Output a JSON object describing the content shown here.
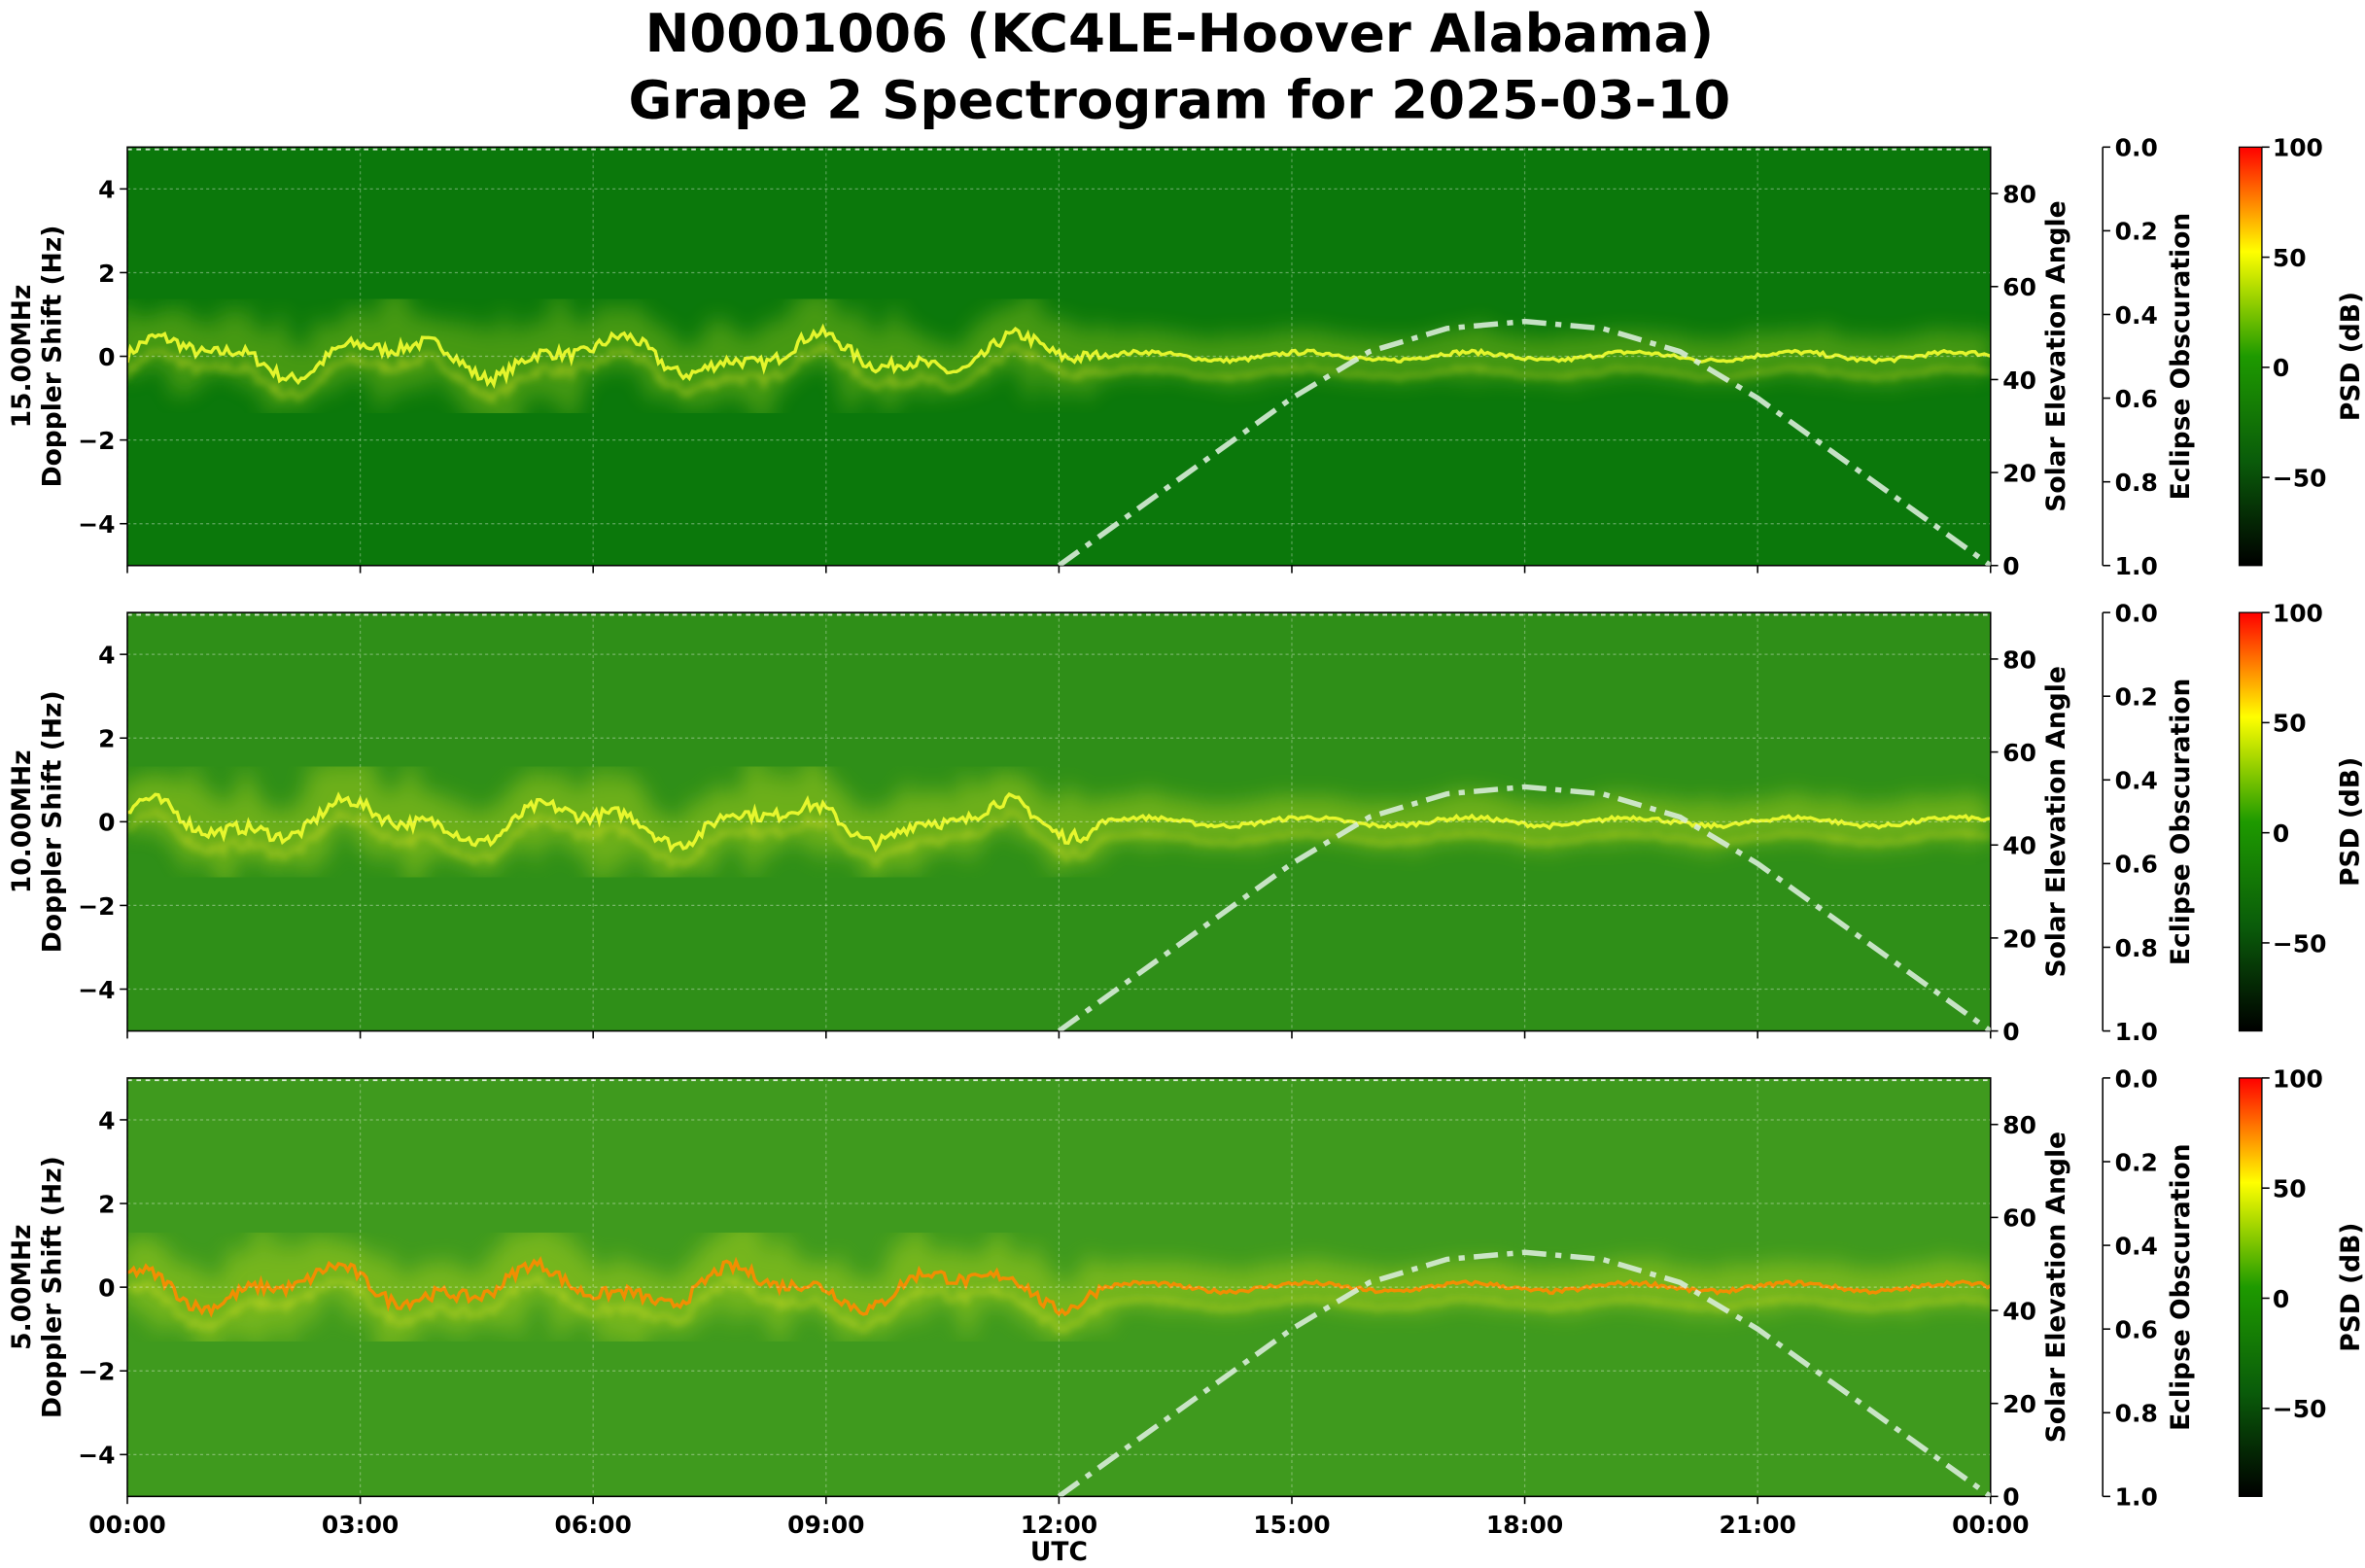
{
  "chart_data": [
    {
      "type": "spectrogram",
      "title": [
        "N0001006 (KC4LE-Hoover Alabama)",
        "Grape 2 Spectrogram for 2025-03-10"
      ],
      "ylabel": [
        "15.00MHz",
        "Doppler Shift (Hz)"
      ],
      "xlim": [
        0,
        24
      ],
      "ylim": [
        -5,
        5
      ],
      "yticks": [
        {
          "value": -4,
          "label": "−4"
        },
        {
          "value": -2,
          "label": "−2"
        },
        0,
        2,
        4
      ],
      "y2label": "Solar Elevation Angle",
      "y2lim": [
        0,
        90
      ],
      "y2ticks": [
        0,
        20,
        40,
        60,
        80
      ],
      "y3label": "Eclipse Obscuration",
      "y3lim": [
        1.0,
        0.0
      ],
      "y3ticks": [
        {
          "value": 0,
          "label": "0.0"
        },
        0.2,
        0.4,
        0.6,
        0.8,
        {
          "value": 1,
          "label": "1.0"
        }
      ],
      "colorbar": {
        "label": "PSD (dB)",
        "lim": [
          -90,
          100
        ],
        "ticks": [
          {
            "value": -50,
            "label": "−50"
          },
          0,
          50,
          100
        ],
        "colormap": [
          "#000000",
          "#0a5c0a",
          "#1e9a00",
          "#ffff00",
          "#ff0000"
        ]
      },
      "series": [
        {
          "color": "#d8ecd8",
          "axis": "y2",
          "x": [
            12,
            13,
            14,
            15,
            16,
            17,
            18,
            19,
            20,
            21,
            22,
            23,
            24
          ],
          "values": [
            0,
            12,
            24,
            36,
            46,
            51,
            52.5,
            51,
            46,
            36,
            24,
            12,
            0
          ]
        }
      ]
    },
    {
      "type": "spectrogram",
      "ylabel": [
        "10.00MHz",
        "Doppler Shift (Hz)"
      ],
      "xlim": [
        0,
        24
      ],
      "ylim": [
        -5,
        5
      ],
      "yticks": [
        {
          "value": -4,
          "label": "−4"
        },
        {
          "value": -2,
          "label": "−2"
        },
        0,
        2,
        4
      ],
      "y2label": "Solar Elevation Angle",
      "y2lim": [
        0,
        90
      ],
      "y2ticks": [
        0,
        20,
        40,
        60,
        80
      ],
      "y3label": "Eclipse Obscuration",
      "y3lim": [
        1.0,
        0.0
      ],
      "y3ticks": [
        {
          "value": 0,
          "label": "0.0"
        },
        0.2,
        0.4,
        0.6,
        0.8,
        {
          "value": 1,
          "label": "1.0"
        }
      ],
      "colorbar": {
        "label": "PSD (dB)",
        "lim": [
          -90,
          100
        ],
        "ticks": [
          {
            "value": -50,
            "label": "−50"
          },
          0,
          50,
          100
        ],
        "colormap": [
          "#000000",
          "#0a5c0a",
          "#1e9a00",
          "#ffff00",
          "#ff0000"
        ]
      },
      "series": [
        {
          "color": "#d8ecd8",
          "axis": "y2",
          "x": [
            12,
            13,
            14,
            15,
            16,
            17,
            18,
            19,
            20,
            21,
            22,
            23,
            24
          ],
          "values": [
            0,
            12,
            24,
            36,
            46,
            51,
            52.5,
            51,
            46,
            36,
            24,
            12,
            0
          ]
        }
      ]
    },
    {
      "type": "spectrogram",
      "ylabel": [
        "5.00MHz",
        "Doppler Shift (Hz)"
      ],
      "xlabel": "UTC",
      "xlim": [
        0,
        24
      ],
      "xticks": [
        {
          "value": 0,
          "label": "00:00"
        },
        {
          "value": 3,
          "label": "03:00"
        },
        {
          "value": 6,
          "label": "06:00"
        },
        {
          "value": 9,
          "label": "09:00"
        },
        {
          "value": 12,
          "label": "12:00"
        },
        {
          "value": 15,
          "label": "15:00"
        },
        {
          "value": 18,
          "label": "18:00"
        },
        {
          "value": 21,
          "label": "21:00"
        },
        {
          "value": 24,
          "label": "00:00"
        }
      ],
      "ylim": [
        -5,
        5
      ],
      "yticks": [
        {
          "value": -4,
          "label": "−4"
        },
        {
          "value": -2,
          "label": "−2"
        },
        0,
        2,
        4
      ],
      "y2label": "Solar Elevation Angle",
      "y2lim": [
        0,
        90
      ],
      "y2ticks": [
        0,
        20,
        40,
        60,
        80
      ],
      "y3label": "Eclipse Obscuration",
      "y3lim": [
        1.0,
        0.0
      ],
      "y3ticks": [
        {
          "value": 0,
          "label": "0.0"
        },
        0.2,
        0.4,
        0.6,
        0.8,
        {
          "value": 1,
          "label": "1.0"
        }
      ],
      "colorbar": {
        "label": "PSD (dB)",
        "lim": [
          -90,
          100
        ],
        "ticks": [
          {
            "value": -50,
            "label": "−50"
          },
          0,
          50,
          100
        ],
        "colormap": [
          "#000000",
          "#0a5c0a",
          "#1e9a00",
          "#ffff00",
          "#ff0000"
        ]
      },
      "series": [
        {
          "color": "#d8ecd8",
          "axis": "y2",
          "x": [
            12,
            13,
            14,
            15,
            16,
            17,
            18,
            19,
            20,
            21,
            22,
            23,
            24
          ],
          "values": [
            0,
            12,
            24,
            36,
            46,
            51,
            52.5,
            51,
            46,
            36,
            24,
            12,
            0
          ]
        }
      ]
    }
  ]
}
